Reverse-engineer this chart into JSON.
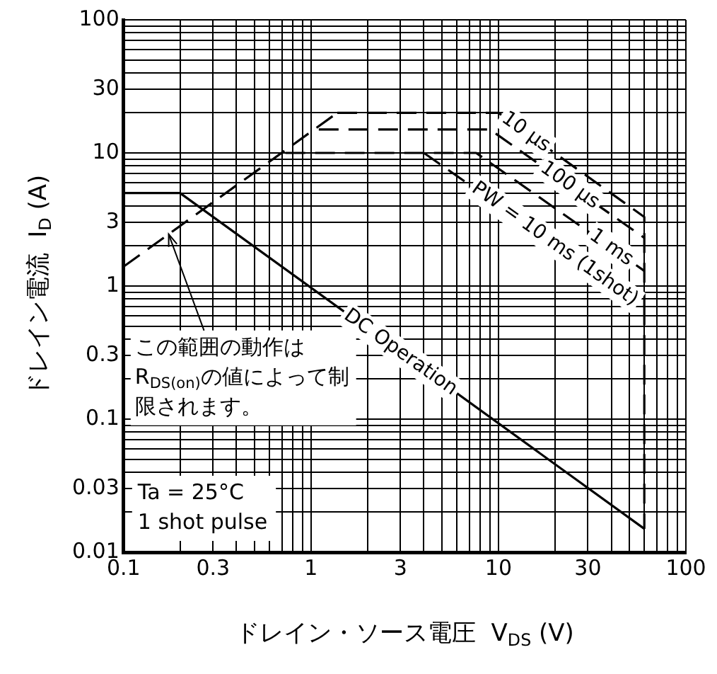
{
  "chart_data": {
    "type": "line",
    "xlabel": "ドレイン・ソース電圧  V$_{DS}$ (V)",
    "ylabel": "ドレイン電流  I$_{D}$ (A)",
    "log": "xy",
    "grid": true,
    "legend": false,
    "marker": "none",
    "xlim": [
      0.1,
      100
    ],
    "ylim": [
      0.01,
      100
    ],
    "xticks": [
      0.1,
      {
        "value": 0.2,
        "label": null
      },
      0.3,
      {
        "value": 0.4,
        "label": null
      },
      {
        "value": 0.5,
        "label": null
      },
      {
        "value": 0.6,
        "label": null
      },
      {
        "value": 0.7,
        "label": null
      },
      {
        "value": 0.8,
        "label": null
      },
      {
        "value": 0.9,
        "label": null
      },
      1,
      {
        "value": 2,
        "label": null
      },
      3,
      {
        "value": 4,
        "label": null
      },
      {
        "value": 5,
        "label": null
      },
      {
        "value": 6,
        "label": null
      },
      {
        "value": 7,
        "label": null
      },
      {
        "value": 8,
        "label": null
      },
      {
        "value": 9,
        "label": null
      },
      10,
      {
        "value": 20,
        "label": null
      },
      30,
      {
        "value": 40,
        "label": null
      },
      {
        "value": 50,
        "label": null
      },
      {
        "value": 60,
        "label": null
      },
      {
        "value": 70,
        "label": null
      },
      {
        "value": 80,
        "label": null
      },
      {
        "value": 90,
        "label": null
      },
      100
    ],
    "yticks": [
      0.01,
      {
        "value": 0.02,
        "label": null
      },
      0.03,
      {
        "value": 0.04,
        "label": null
      },
      {
        "value": 0.05,
        "label": null
      },
      {
        "value": 0.06,
        "label": null
      },
      {
        "value": 0.07,
        "label": null
      },
      {
        "value": 0.08,
        "label": null
      },
      {
        "value": 0.09,
        "label": null
      },
      0.1,
      {
        "value": 0.2,
        "label": null
      },
      0.3,
      {
        "value": 0.4,
        "label": null
      },
      {
        "value": 0.5,
        "label": null
      },
      {
        "value": 0.6,
        "label": null
      },
      {
        "value": 0.7,
        "label": null
      },
      {
        "value": 0.8,
        "label": null
      },
      {
        "value": 0.9,
        "label": null
      },
      1,
      {
        "value": 2,
        "label": null
      },
      3,
      {
        "value": 4,
        "label": null
      },
      {
        "value": 5,
        "label": null
      },
      {
        "value": 6,
        "label": null
      },
      {
        "value": 7,
        "label": null
      },
      {
        "value": 8,
        "label": null
      },
      {
        "value": 9,
        "label": null
      },
      10,
      {
        "value": 20,
        "label": null
      },
      30,
      {
        "value": 40,
        "label": null
      },
      {
        "value": 50,
        "label": null
      },
      {
        "value": 60,
        "label": null
      },
      {
        "value": 70,
        "label": null
      },
      {
        "value": 80,
        "label": null
      },
      {
        "value": 90,
        "label": null
      },
      100
    ],
    "series": [
      {
        "color": "#000000",
        "line_style": "dashed",
        "x": [
          0.1,
          1.38
        ],
        "values": [
          1.4,
          20
        ]
      },
      {
        "color": "#000000",
        "line_style": "dashed",
        "x": [
          1.38,
          10,
          60,
          60
        ],
        "values": [
          20,
          20,
          3.3,
          0.7
        ]
      },
      {
        "color": "#000000",
        "line_style": "dashed",
        "x": [
          1.1,
          9,
          60
        ],
        "values": [
          15,
          15,
          2.3
        ]
      },
      {
        "color": "#000000",
        "line_style": "dashed",
        "x": [
          0.73,
          7.6,
          60
        ],
        "values": [
          10,
          10,
          1.3
        ]
      },
      {
        "color": "#000000",
        "line_style": "dashed",
        "x": [
          4,
          60,
          60
        ],
        "values": [
          10,
          0.7,
          0.015
        ]
      },
      {
        "color": "#000000",
        "line_style": "solid",
        "x": [
          0.1,
          0.2,
          60
        ],
        "values": [
          5,
          5,
          0.015
        ]
      }
    ],
    "annotations": [
      {
        "text": "10 µs",
        "x": 14,
        "y": 14.3
      },
      {
        "text": "100 µs",
        "x": 24,
        "y": 5.7
      },
      {
        "text": "1 ms",
        "x": 40,
        "y": 1.94
      },
      {
        "text": "PW = 10 ms (1shot)",
        "x": 20,
        "y": 2.06
      },
      {
        "text": "DC Operation",
        "x": 3,
        "y": 0.317
      },
      {
        "text": "この範囲の動作はR$_{DS(on)}$の値によって制限されます。",
        "x": 0.174,
        "y": 2.45
      },
      "Ta = 25°C\n1 shot pulse"
    ]
  }
}
